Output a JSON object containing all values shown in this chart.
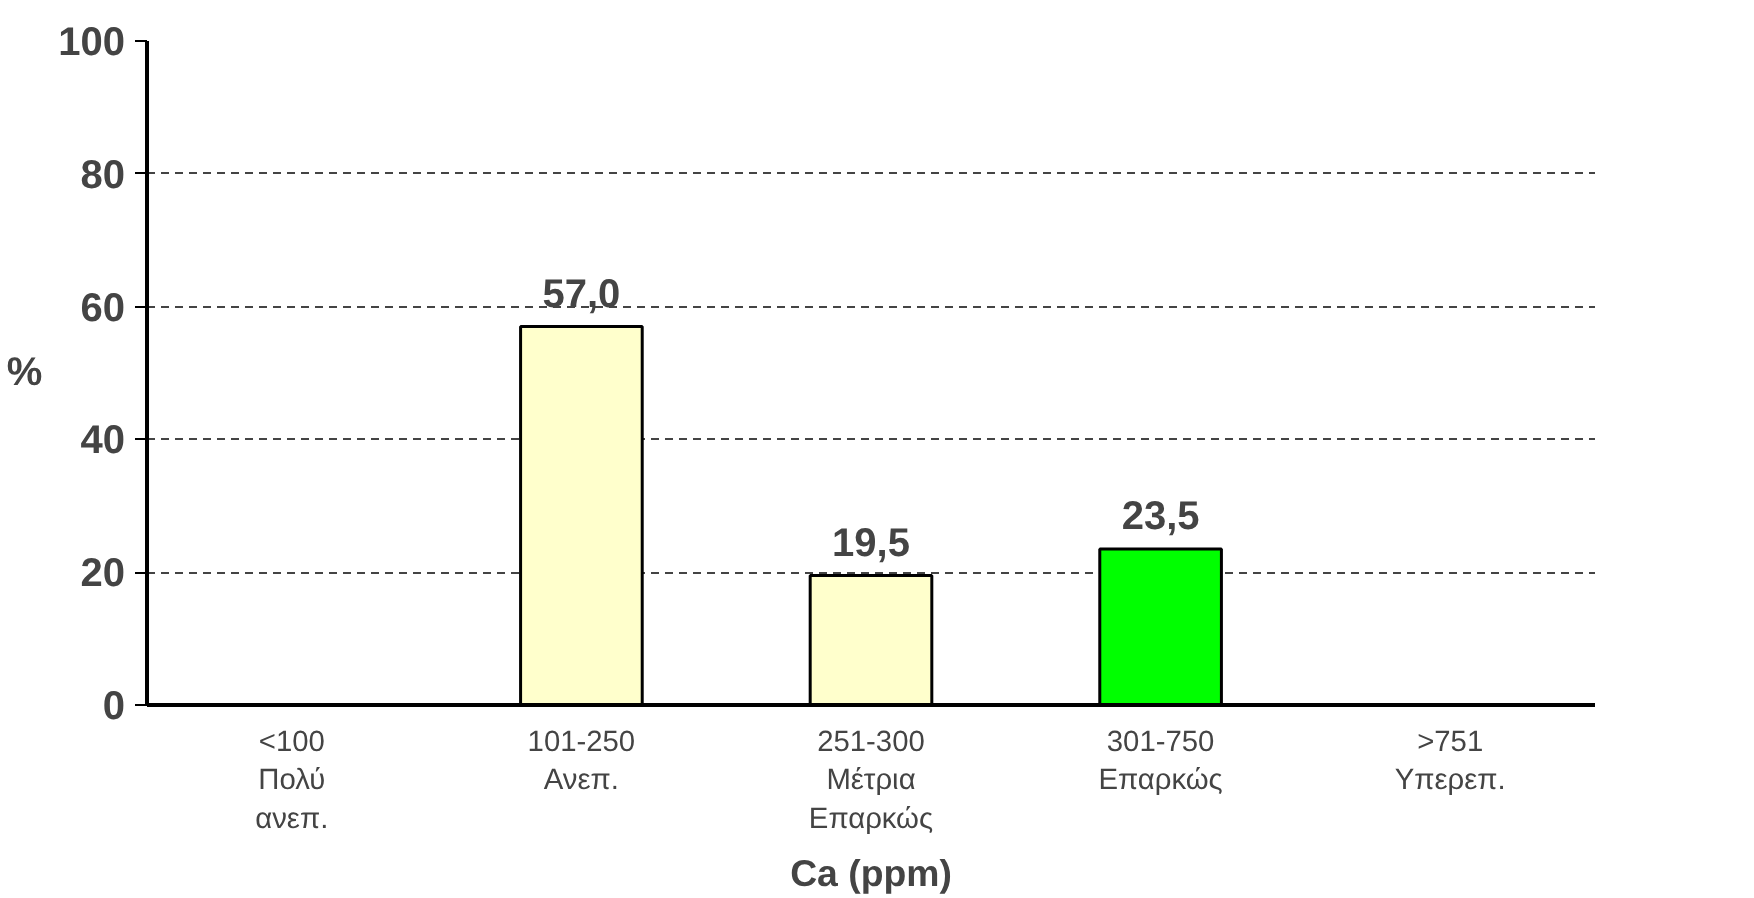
{
  "chart_data": {
    "type": "bar",
    "xlabel": "Ca (ppm)",
    "ylabel": "%",
    "categories": [
      "<100\nΠολύ\nανεπ.",
      "101-250\nΑνεπ.",
      "251-300\nΜέτρια\nΕπαρκώς",
      "301-750\nΕπαρκώς",
      ">751\nΥπερεπ."
    ],
    "values": [
      null,
      57.0,
      19.5,
      23.5,
      null
    ],
    "value_labels": [
      null,
      "57,0",
      "19,5",
      "23,5",
      null
    ],
    "colors": [
      "#ffffcc",
      "#ffffcc",
      "#ffffcc",
      "#00ff00",
      "#ffffcc"
    ],
    "ylim": [
      0,
      100
    ],
    "yticks": [
      0,
      20,
      40,
      60,
      80,
      100
    ],
    "grid": "y"
  }
}
